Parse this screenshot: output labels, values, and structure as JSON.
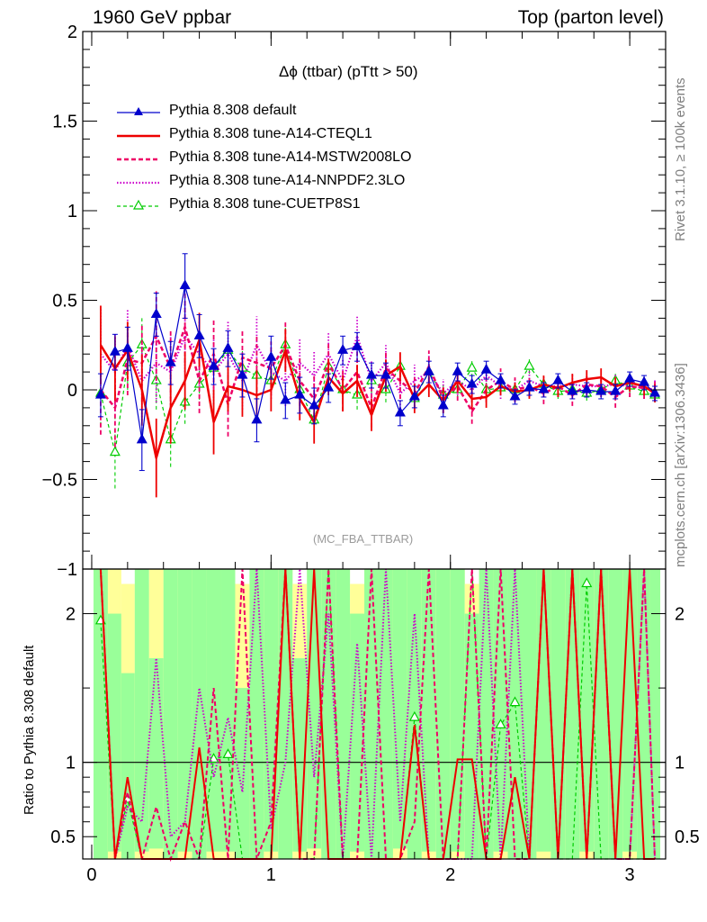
{
  "header": {
    "left": "1960 GeV ppbar",
    "right": "Top (parton level)"
  },
  "side_notes": {
    "rivet": "Rivet 3.1.10, ≥ 100k events",
    "source": "mcplots.cern.ch [arXiv:1306.3436]"
  },
  "colors": {
    "default": "#0000cc",
    "cteql1": "#ee0000",
    "mstw": "#ee0066",
    "nnpdf": "#cc00cc",
    "cuetp": "#00cc00",
    "band_yellow": "#ffff99",
    "band_green": "#99ff99"
  },
  "chart_data": [
    {
      "type": "line",
      "title": "Δϕ (ttbar) (pTtt > 50)",
      "annotation": "(MC_FBA_TTBAR)",
      "xlim": [
        -0.05,
        3.2
      ],
      "ylim": [
        -1.0,
        2.0
      ],
      "x_ticks": [
        "0",
        "1",
        "2",
        "3"
      ],
      "y_ticks": [
        "−1",
        "−0.5",
        "0",
        "0.5",
        "1",
        "1.5",
        "2"
      ],
      "legend_position": "top-left",
      "x": [
        0.05,
        0.13,
        0.2,
        0.28,
        0.36,
        0.44,
        0.52,
        0.6,
        0.68,
        0.76,
        0.84,
        0.92,
        1.0,
        1.08,
        1.16,
        1.24,
        1.32,
        1.4,
        1.48,
        1.56,
        1.64,
        1.72,
        1.8,
        1.88,
        1.96,
        2.04,
        2.12,
        2.2,
        2.28,
        2.36,
        2.44,
        2.52,
        2.6,
        2.68,
        2.76,
        2.84,
        2.92,
        3.0,
        3.08,
        3.14
      ],
      "series": [
        {
          "name": "Pythia 8.308 default",
          "key": "default",
          "values": [
            -0.03,
            0.21,
            0.23,
            -0.28,
            0.42,
            0.15,
            0.58,
            0.3,
            0.13,
            0.23,
            0.08,
            -0.17,
            0.18,
            -0.06,
            -0.03,
            -0.09,
            0.01,
            0.22,
            0.24,
            0.08,
            0.08,
            -0.13,
            -0.04,
            0.1,
            -0.09,
            0.1,
            0.03,
            0.11,
            0.05,
            -0.04,
            0.01,
            0.0,
            0.05,
            -0.01,
            0.0,
            -0.01,
            -0.01,
            0.06,
            0.04,
            -0.02
          ],
          "errors": [
            0.12,
            0.1,
            0.12,
            0.17,
            0.12,
            0.12,
            0.18,
            0.12,
            0.1,
            0.1,
            0.12,
            0.12,
            0.12,
            0.1,
            0.1,
            0.1,
            0.08,
            0.08,
            0.08,
            0.07,
            0.07,
            0.07,
            0.06,
            0.06,
            0.06,
            0.05,
            0.05,
            0.05,
            0.04,
            0.04,
            0.04,
            0.04,
            0.04,
            0.04,
            0.04,
            0.04,
            0.04,
            0.04,
            0.04,
            0.04
          ]
        },
        {
          "name": "Pythia 8.308 tune-A14-CTEQL1",
          "key": "cteql1",
          "values": [
            0.25,
            0.12,
            0.22,
            0.0,
            -0.38,
            -0.1,
            0.05,
            0.28,
            -0.18,
            0.02,
            0.0,
            -0.03,
            0.0,
            0.22,
            -0.05,
            -0.18,
            0.07,
            -0.02,
            0.05,
            -0.14,
            0.08,
            0.13,
            -0.05,
            0.03,
            -0.06,
            0.05,
            -0.05,
            -0.04,
            0.02,
            -0.01,
            0.0,
            0.03,
            0.01,
            0.04,
            0.06,
            0.07,
            0.02,
            0.04,
            0.02,
            -0.02
          ],
          "errors": [
            0.22,
            0.18,
            0.16,
            0.2,
            0.22,
            0.2,
            0.16,
            0.15,
            0.18,
            0.14,
            0.15,
            0.14,
            0.12,
            0.12,
            0.12,
            0.12,
            0.1,
            0.1,
            0.09,
            0.09,
            0.09,
            0.08,
            0.08,
            0.07,
            0.07,
            0.06,
            0.06,
            0.06,
            0.05,
            0.05,
            0.05,
            0.05,
            0.05,
            0.05,
            0.05,
            0.05,
            0.05,
            0.05,
            0.05,
            0.05
          ]
        },
        {
          "name": "Pythia 8.308 tune-A14-MSTW2008LO",
          "key": "mstw",
          "values": [
            0.0,
            -0.1,
            0.17,
            0.15,
            0.3,
            0.12,
            0.35,
            0.05,
            0.2,
            -0.08,
            0.18,
            0.15,
            0.12,
            0.25,
            0.05,
            -0.05,
            0.15,
            0.0,
            0.1,
            -0.1,
            0.12,
            0.05,
            -0.02,
            0.13,
            -0.05,
            0.02,
            -0.12,
            0.0,
            0.05,
            0.0,
            0.02,
            -0.02,
            0.02,
            -0.03,
            0.03,
            0.02,
            -0.04,
            0.02,
            0.01,
            0.0
          ],
          "errors": [
            0.25,
            0.22,
            0.2,
            0.22,
            0.25,
            0.22,
            0.2,
            0.18,
            0.2,
            0.18,
            0.16,
            0.16,
            0.15,
            0.14,
            0.14,
            0.14,
            0.12,
            0.12,
            0.11,
            0.11,
            0.1,
            0.1,
            0.09,
            0.09,
            0.08,
            0.08,
            0.07,
            0.07,
            0.07,
            0.07,
            0.06,
            0.06,
            0.06,
            0.06,
            0.06,
            0.06,
            0.06,
            0.06,
            0.06,
            0.06
          ]
        },
        {
          "name": "Pythia 8.308 tune-A14-NNPDF2.3LO",
          "key": "nnpdf",
          "values": [
            0.2,
            0.1,
            0.25,
            0.05,
            0.15,
            0.1,
            0.3,
            0.2,
            0.1,
            0.2,
            0.05,
            0.25,
            0.1,
            0.05,
            0.15,
            0.08,
            0.2,
            0.05,
            0.3,
            0.05,
            0.15,
            -0.02,
            0.05,
            0.1,
            -0.02,
            0.05,
            0.0,
            0.08,
            0.02,
            0.0,
            0.05,
            0.02,
            0.02,
            0.03,
            0.02,
            0.02,
            0.03,
            0.02,
            0.01,
            0.0
          ],
          "errors": [
            0.25,
            0.22,
            0.2,
            0.22,
            0.22,
            0.2,
            0.2,
            0.18,
            0.18,
            0.18,
            0.16,
            0.16,
            0.15,
            0.14,
            0.14,
            0.14,
            0.12,
            0.12,
            0.11,
            0.11,
            0.1,
            0.1,
            0.09,
            0.09,
            0.08,
            0.08,
            0.07,
            0.07,
            0.07,
            0.07,
            0.06,
            0.06,
            0.06,
            0.06,
            0.06,
            0.06,
            0.06,
            0.06,
            0.06,
            0.06
          ]
        },
        {
          "name": "Pythia 8.308 tune-CUETP8S1",
          "key": "cuetp",
          "values": [
            -0.02,
            -0.35,
            0.15,
            0.25,
            0.05,
            -0.28,
            -0.07,
            0.03,
            0.12,
            0.22,
            0.12,
            0.08,
            0.05,
            0.25,
            0.0,
            -0.17,
            0.13,
            0.0,
            -0.03,
            0.05,
            0.0,
            0.13,
            -0.05,
            0.1,
            -0.03,
            0.0,
            0.12,
            0.0,
            0.01,
            0.0,
            0.13,
            0.03,
            -0.01,
            0.0,
            -0.02,
            0.0,
            0.05,
            0.02,
            -0.01,
            -0.03
          ],
          "errors": [
            0.18,
            0.2,
            0.15,
            0.15,
            0.16,
            0.15,
            0.12,
            0.12,
            0.1,
            0.1,
            0.1,
            0.1,
            0.1,
            0.1,
            0.09,
            0.09,
            0.08,
            0.08,
            0.08,
            0.07,
            0.07,
            0.07,
            0.06,
            0.06,
            0.06,
            0.05,
            0.05,
            0.05,
            0.04,
            0.04,
            0.04,
            0.04,
            0.04,
            0.04,
            0.04,
            0.04,
            0.04,
            0.04,
            0.04,
            0.04
          ]
        }
      ]
    },
    {
      "type": "line",
      "ylabel": "Ratio to Pythia 8.308 default",
      "xlim": [
        -0.05,
        3.2
      ],
      "ylim": [
        0.35,
        2.3
      ],
      "x_ticks": [
        "0",
        "1",
        "2",
        "3"
      ],
      "y_ticks": [
        "0.5",
        "1",
        "2"
      ],
      "reference_line": 1,
      "band_yellow_lower": [
        0.35,
        0.35,
        0.35,
        0.35,
        0.35,
        0.35,
        0.35,
        0.35,
        0.35,
        0.35,
        0.35,
        0.35,
        0.35,
        0.35,
        0.35,
        0.35,
        0.35,
        0.35,
        0.35,
        0.35,
        0.35,
        0.35,
        0.35,
        0.35,
        0.35,
        0.35,
        0.35,
        0.35,
        0.35,
        0.35,
        0.35,
        0.35,
        0.35,
        0.35,
        0.35,
        0.35,
        0.35,
        0.35,
        0.35,
        0.35
      ],
      "band_yellow_upper": [
        2.3,
        2.3,
        2.2,
        2.2,
        2.3,
        2.3,
        2.3,
        2.3,
        2.3,
        2.3,
        2.2,
        2.3,
        2.3,
        2.3,
        2.2,
        2.3,
        2.3,
        2.3,
        2.2,
        2.3,
        2.3,
        2.3,
        2.3,
        2.3,
        2.3,
        2.3,
        2.2,
        2.3,
        2.3,
        2.3,
        2.3,
        2.3,
        2.3,
        2.3,
        2.3,
        2.3,
        2.3,
        2.3,
        2.3,
        2.3
      ],
      "band_green_lower": [
        0.35,
        0.4,
        0.35,
        0.4,
        0.42,
        0.35,
        0.4,
        0.35,
        0.4,
        0.4,
        0.35,
        0.35,
        0.4,
        0.35,
        0.4,
        0.42,
        0.35,
        0.35,
        0.4,
        0.35,
        0.35,
        0.42,
        0.35,
        0.4,
        0.35,
        0.4,
        0.35,
        0.35,
        0.4,
        0.35,
        0.35,
        0.4,
        0.35,
        0.35,
        0.4,
        0.35,
        0.35,
        0.4,
        0.35,
        0.35
      ],
      "band_green_upper": [
        2.3,
        2.0,
        1.6,
        2.3,
        1.7,
        2.3,
        2.3,
        2.3,
        2.3,
        2.3,
        1.5,
        2.3,
        2.3,
        2.3,
        1.7,
        2.3,
        2.3,
        2.3,
        2.0,
        2.3,
        2.3,
        2.3,
        2.3,
        2.3,
        2.3,
        2.3,
        2.0,
        2.3,
        2.3,
        2.3,
        2.3,
        2.3,
        2.3,
        2.3,
        2.3,
        2.3,
        2.3,
        2.3,
        2.3,
        2.3
      ],
      "series": [
        {
          "name": "Pythia 8.308 tune-A14-CTEQL1",
          "key": "cteql1",
          "values": [
            2.3,
            0.35,
            0.9,
            0.35,
            0.35,
            0.35,
            0.35,
            1.1,
            0.35,
            0.35,
            0.35,
            0.35,
            0.35,
            2.3,
            0.35,
            2.3,
            0.35,
            0.35,
            0.35,
            0.35,
            0.35,
            0.35,
            1.25,
            0.35,
            0.35,
            1.02,
            1.02,
            0.35,
            0.35,
            0.9,
            0.35,
            2.3,
            0.35,
            2.3,
            0.35,
            2.3,
            0.35,
            2.3,
            0.35,
            0.35
          ]
        },
        {
          "name": "Pythia 8.308 tune-A14-MSTW2008LO",
          "key": "mstw",
          "values": [
            2.3,
            0.35,
            0.8,
            0.35,
            0.7,
            0.35,
            0.6,
            0.35,
            1.5,
            0.35,
            2.3,
            0.35,
            0.6,
            2.3,
            0.35,
            0.35,
            2.3,
            0.35,
            0.35,
            2.3,
            0.35,
            0.35,
            0.6,
            2.3,
            0.35,
            0.35,
            2.3,
            0.35,
            2.3,
            0.35,
            0.35,
            2.3,
            0.35,
            2.3,
            0.35,
            2.3,
            0.35,
            0.35,
            2.3,
            0.35
          ]
        },
        {
          "name": "Pythia 8.308 tune-A14-NNPDF2.3LO",
          "key": "nnpdf",
          "values": [
            2.3,
            0.35,
            0.7,
            0.6,
            1.7,
            0.5,
            0.6,
            1.5,
            0.9,
            1.3,
            0.8,
            2.3,
            0.55,
            1.0,
            2.3,
            0.9,
            2.0,
            0.35,
            1.8,
            0.35,
            2.3,
            0.6,
            2.0,
            0.35,
            0.35,
            0.35,
            0.35,
            2.3,
            0.35,
            2.3,
            0.35,
            2.3,
            0.35,
            2.3,
            0.35,
            2.3,
            0.35,
            0.35,
            2.3,
            0.35
          ]
        },
        {
          "name": "Pythia 8.308 tune-CUETP8S1",
          "key": "cuetp",
          "values": [
            1.95,
            0.35,
            0.75,
            0.35,
            0.35,
            0.35,
            0.35,
            0.35,
            1.02,
            1.05,
            0.35,
            0.35,
            0.35,
            2.3,
            0.35,
            0.35,
            2.3,
            0.35,
            0.35,
            0.35,
            0.35,
            0.35,
            1.3,
            0.35,
            0.35,
            0.35,
            2.3,
            0.35,
            1.25,
            1.4,
            0.35,
            2.3,
            0.35,
            0.35,
            2.2,
            0.35,
            0.35,
            0.35,
            0.35,
            0.35
          ]
        }
      ]
    }
  ]
}
